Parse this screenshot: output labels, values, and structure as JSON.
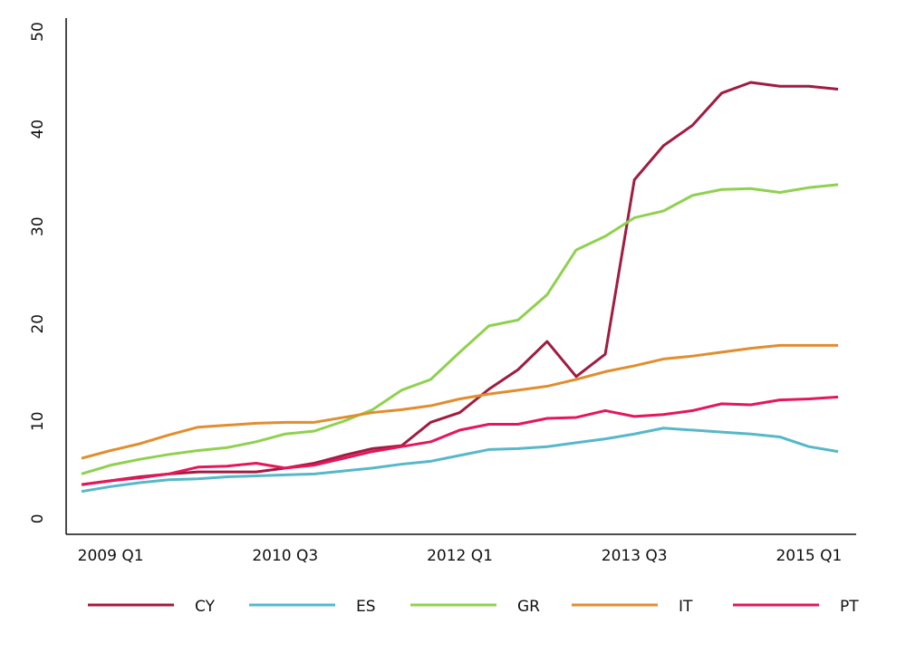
{
  "chart_data": {
    "type": "line",
    "categories": [
      null,
      "2009 Q1",
      null,
      null,
      null,
      null,
      null,
      "2010 Q3",
      null,
      null,
      null,
      null,
      null,
      "2012 Q1",
      null,
      null,
      null,
      null,
      null,
      "2013 Q3",
      null,
      null,
      null,
      null,
      null,
      "2015  Q1",
      null
    ],
    "series": [
      {
        "name": "CY",
        "color": "#a01c40",
        "values": [
          3.5,
          3.9,
          4.3,
          4.6,
          4.8,
          4.8,
          4.8,
          5.2,
          5.7,
          6.5,
          7.2,
          7.5,
          9.9,
          10.9,
          13.3,
          15.3,
          18.2,
          14.6,
          16.9,
          34.8,
          38.3,
          40.4,
          43.7,
          44.8,
          44.4,
          44.4,
          44.1
        ]
      },
      {
        "name": "ES",
        "color": "#56b8c8",
        "values": [
          2.8,
          3.3,
          3.7,
          4.0,
          4.1,
          4.3,
          4.4,
          4.5,
          4.6,
          4.9,
          5.2,
          5.6,
          5.9,
          6.5,
          7.1,
          7.2,
          7.4,
          7.8,
          8.2,
          8.7,
          9.3,
          9.1,
          8.9,
          8.7,
          8.4,
          7.4,
          6.9
        ]
      },
      {
        "name": "GR",
        "color": "#8fd14f",
        "values": [
          4.6,
          5.5,
          6.1,
          6.6,
          7.0,
          7.3,
          7.9,
          8.7,
          9.0,
          10.0,
          11.2,
          13.2,
          14.3,
          17.1,
          19.8,
          20.4,
          23.0,
          27.6,
          29.0,
          30.9,
          31.6,
          33.2,
          33.8,
          33.9,
          33.5,
          34.0,
          34.3
        ]
      },
      {
        "name": "IT",
        "color": "#e08e2e",
        "values": [
          6.2,
          7.0,
          7.7,
          8.6,
          9.4,
          9.6,
          9.8,
          9.9,
          9.9,
          10.4,
          10.9,
          11.2,
          11.6,
          12.3,
          12.8,
          13.2,
          13.6,
          14.3,
          15.1,
          15.7,
          16.4,
          16.7,
          17.1,
          17.5,
          17.8,
          17.8,
          17.8
        ]
      },
      {
        "name": "PT",
        "color": "#e4175a",
        "values": [
          3.5,
          3.9,
          4.2,
          4.6,
          5.3,
          5.4,
          5.7,
          5.2,
          5.5,
          6.2,
          6.9,
          7.4,
          7.9,
          9.1,
          9.7,
          9.7,
          10.3,
          10.4,
          11.1,
          10.5,
          10.7,
          11.1,
          11.8,
          11.7,
          12.2,
          12.3,
          12.5
        ]
      }
    ],
    "ylim": [
      -1.6,
      51.4
    ],
    "yticks": [
      0,
      10,
      20,
      30,
      40,
      50
    ],
    "grid": false,
    "legend": "bottom"
  }
}
